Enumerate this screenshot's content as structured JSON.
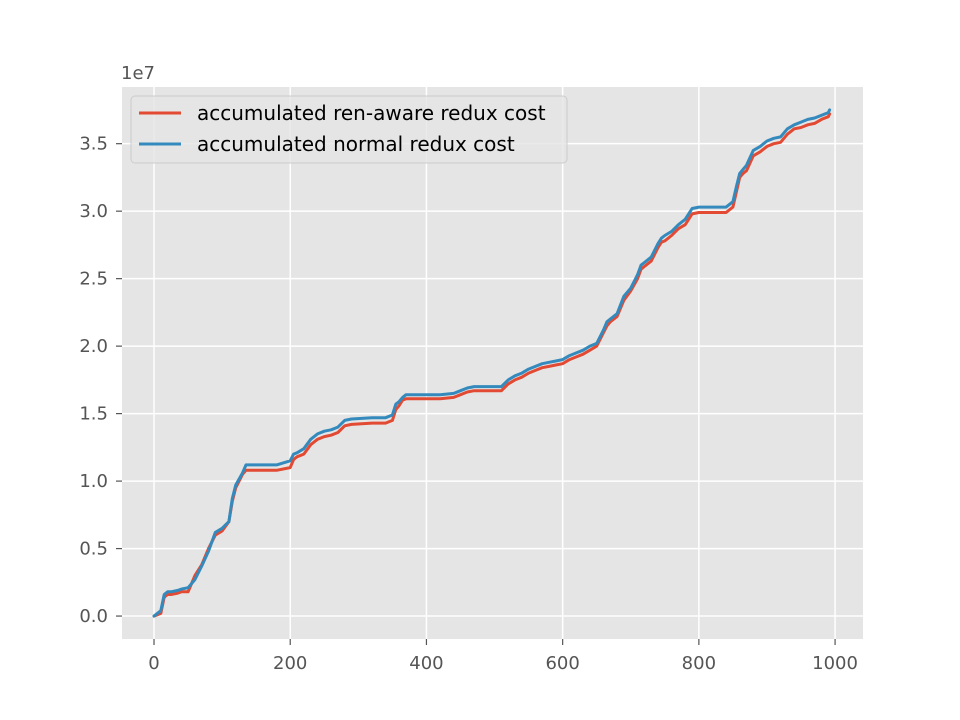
{
  "chart_data": {
    "type": "line",
    "title": "",
    "xlabel": "",
    "ylabel": "",
    "y_offset_label": "1e7",
    "xlim": [
      -47,
      1041
    ],
    "ylim": [
      -0.17,
      3.92
    ],
    "x_ticks": [
      0,
      200,
      400,
      600,
      800,
      1000
    ],
    "x_tick_labels": [
      "0",
      "200",
      "400",
      "600",
      "800",
      "1000"
    ],
    "y_ticks": [
      0.0,
      0.5,
      1.0,
      1.5,
      2.0,
      2.5,
      3.0,
      3.5
    ],
    "y_tick_labels": [
      "0.0",
      "0.5",
      "1.0",
      "1.5",
      "2.0",
      "2.5",
      "3.0",
      "3.5"
    ],
    "grid": true,
    "legend_position": "top-left",
    "background": "#e5e5e5",
    "series": [
      {
        "name": "accumulated ren-aware redux cost",
        "color": "#e24a33",
        "x": [
          0,
          10,
          15,
          20,
          25,
          35,
          40,
          50,
          60,
          70,
          80,
          90,
          100,
          110,
          115,
          120,
          130,
          135,
          140,
          180,
          200,
          205,
          210,
          220,
          230,
          240,
          250,
          260,
          270,
          280,
          290,
          320,
          340,
          350,
          355,
          360,
          365,
          370,
          380,
          420,
          440,
          450,
          460,
          470,
          480,
          510,
          520,
          530,
          540,
          550,
          560,
          570,
          580,
          590,
          600,
          610,
          620,
          630,
          640,
          650,
          660,
          665,
          670,
          680,
          690,
          700,
          710,
          715,
          720,
          730,
          740,
          745,
          750,
          760,
          770,
          780,
          790,
          800,
          840,
          850,
          855,
          860,
          865,
          870,
          880,
          890,
          900,
          910,
          920,
          930,
          940,
          950,
          960,
          970,
          980,
          990,
          992
        ],
        "y": [
          0.0,
          0.02,
          0.14,
          0.16,
          0.16,
          0.17,
          0.18,
          0.18,
          0.3,
          0.38,
          0.5,
          0.6,
          0.63,
          0.7,
          0.85,
          0.95,
          1.05,
          1.08,
          1.08,
          1.08,
          1.1,
          1.16,
          1.18,
          1.2,
          1.27,
          1.31,
          1.33,
          1.34,
          1.36,
          1.41,
          1.42,
          1.43,
          1.43,
          1.45,
          1.53,
          1.56,
          1.6,
          1.61,
          1.61,
          1.61,
          1.62,
          1.64,
          1.66,
          1.67,
          1.67,
          1.67,
          1.72,
          1.75,
          1.77,
          1.8,
          1.82,
          1.84,
          1.85,
          1.86,
          1.87,
          1.9,
          1.92,
          1.94,
          1.97,
          2.0,
          2.1,
          2.15,
          2.18,
          2.22,
          2.34,
          2.41,
          2.5,
          2.57,
          2.59,
          2.63,
          2.73,
          2.77,
          2.78,
          2.82,
          2.87,
          2.9,
          2.98,
          2.99,
          2.99,
          3.03,
          3.14,
          3.25,
          3.28,
          3.3,
          3.41,
          3.44,
          3.48,
          3.5,
          3.51,
          3.57,
          3.61,
          3.62,
          3.64,
          3.65,
          3.68,
          3.7,
          3.72
        ]
      },
      {
        "name": "accumulated normal redux cost",
        "color": "#348abd",
        "x": [
          0,
          10,
          15,
          20,
          25,
          35,
          40,
          50,
          60,
          70,
          80,
          90,
          100,
          110,
          115,
          120,
          130,
          135,
          140,
          180,
          200,
          205,
          210,
          220,
          230,
          240,
          250,
          260,
          270,
          280,
          290,
          320,
          340,
          350,
          355,
          360,
          365,
          370,
          380,
          420,
          440,
          450,
          460,
          470,
          480,
          510,
          520,
          530,
          540,
          550,
          560,
          570,
          580,
          590,
          600,
          610,
          620,
          630,
          640,
          650,
          660,
          665,
          670,
          680,
          690,
          700,
          710,
          715,
          720,
          730,
          740,
          745,
          750,
          760,
          770,
          780,
          790,
          800,
          840,
          850,
          855,
          860,
          865,
          870,
          880,
          890,
          900,
          910,
          920,
          930,
          940,
          950,
          960,
          970,
          980,
          990,
          992
        ],
        "y": [
          0.0,
          0.04,
          0.16,
          0.18,
          0.18,
          0.19,
          0.2,
          0.21,
          0.27,
          0.37,
          0.48,
          0.62,
          0.65,
          0.7,
          0.87,
          0.97,
          1.06,
          1.12,
          1.12,
          1.12,
          1.15,
          1.2,
          1.21,
          1.24,
          1.31,
          1.35,
          1.37,
          1.38,
          1.4,
          1.45,
          1.46,
          1.47,
          1.47,
          1.49,
          1.57,
          1.59,
          1.62,
          1.64,
          1.64,
          1.64,
          1.65,
          1.67,
          1.69,
          1.7,
          1.7,
          1.7,
          1.75,
          1.78,
          1.8,
          1.83,
          1.85,
          1.87,
          1.88,
          1.89,
          1.9,
          1.93,
          1.95,
          1.97,
          2.0,
          2.02,
          2.12,
          2.18,
          2.2,
          2.24,
          2.37,
          2.43,
          2.53,
          2.6,
          2.62,
          2.66,
          2.76,
          2.8,
          2.82,
          2.85,
          2.9,
          2.94,
          3.02,
          3.03,
          3.03,
          3.07,
          3.18,
          3.28,
          3.31,
          3.34,
          3.45,
          3.48,
          3.52,
          3.54,
          3.55,
          3.61,
          3.64,
          3.66,
          3.68,
          3.69,
          3.71,
          3.73,
          3.75
        ]
      }
    ]
  }
}
